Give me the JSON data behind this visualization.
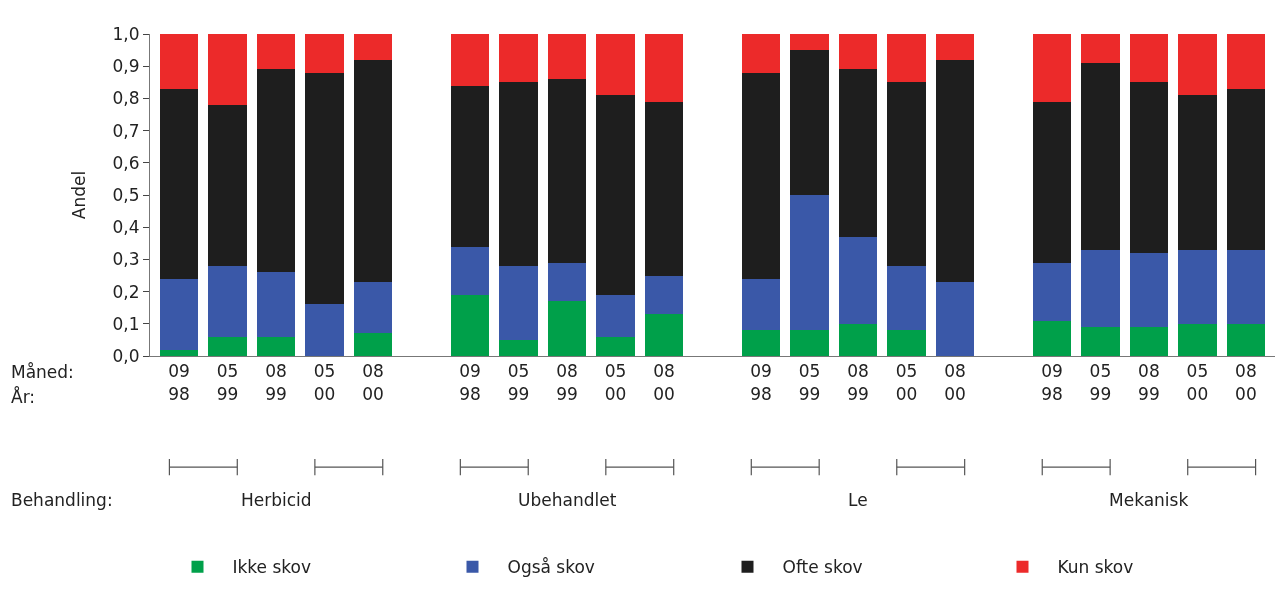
{
  "chart_data": {
    "type": "bar",
    "stacked": true,
    "ylabel": "Andel",
    "categories": [
      "09\n98",
      "05\n99",
      "08\n99",
      "05\n00",
      "08\n00",
      null,
      "09\n98",
      "05\n99",
      "08\n99",
      "05\n00",
      "08\n00",
      null,
      "09\n98",
      "05\n99",
      "08\n99",
      "05\n00",
      "08\n00",
      null,
      "09\n98",
      "05\n99",
      "08\n99",
      "05\n00",
      "08\n00"
    ],
    "series": [
      {
        "name": "Ikke skov",
        "color": "#00a04a",
        "values": [
          0.02,
          0.06,
          0.06,
          0,
          0.07,
          null,
          0.19,
          0.05,
          0.17,
          0.06,
          0.13,
          null,
          0.08,
          0.08,
          0.1,
          0.08,
          0,
          null,
          0.11,
          0.09,
          0.09,
          0.1,
          0.1
        ]
      },
      {
        "name": "Også skov",
        "color": "#3a58a8",
        "values": [
          0.22,
          0.22,
          0.2,
          0.16,
          0.16,
          null,
          0.15,
          0.23,
          0.12,
          0.13,
          0.12,
          null,
          0.16,
          0.42,
          0.27,
          0.2,
          0.23,
          null,
          0.18,
          0.24,
          0.23,
          0.23,
          0.23
        ]
      },
      {
        "name": "Ofte skov",
        "color": "#1e1e1e",
        "values": [
          0.59,
          0.5,
          0.63,
          0.72,
          0.69,
          null,
          0.5,
          0.57,
          0.57,
          0.62,
          0.54,
          null,
          0.64,
          0.45,
          0.52,
          0.57,
          0.69,
          null,
          0.5,
          0.58,
          0.53,
          0.48,
          0.5
        ]
      },
      {
        "name": "Kun skov",
        "color": "#ec2a2a",
        "values": [
          0.17,
          0.22,
          0.11,
          0.12,
          0.08,
          null,
          0.16,
          0.15,
          0.14,
          0.19,
          0.21,
          null,
          0.12,
          0.05,
          0.11,
          0.15,
          0.08,
          null,
          0.21,
          0.09,
          0.15,
          0.19,
          0.17
        ]
      }
    ],
    "ylim": [
      0,
      1.0
    ],
    "yticks": [
      {
        "value": 0,
        "label": "0,0"
      },
      {
        "value": 0.1,
        "label": "0,1"
      },
      {
        "value": 0.2,
        "label": "0,2"
      },
      {
        "value": 0.3,
        "label": "0,3"
      },
      {
        "value": 0.4,
        "label": "0,4"
      },
      {
        "value": 0.5,
        "label": "0,5"
      },
      {
        "value": 0.6,
        "label": "0,6"
      },
      {
        "value": 0.7,
        "label": "0,7"
      },
      {
        "value": 0.8,
        "label": "0,8"
      },
      {
        "value": 0.9,
        "label": "0,9"
      },
      {
        "value": 1.0,
        "label": "1,0"
      }
    ],
    "annotations": [
      "Måned:",
      "År:",
      "Behandling:",
      "Herbicid",
      "Ubehandlet",
      "Le",
      "Mekanisk"
    ],
    "legend": "bottom"
  }
}
